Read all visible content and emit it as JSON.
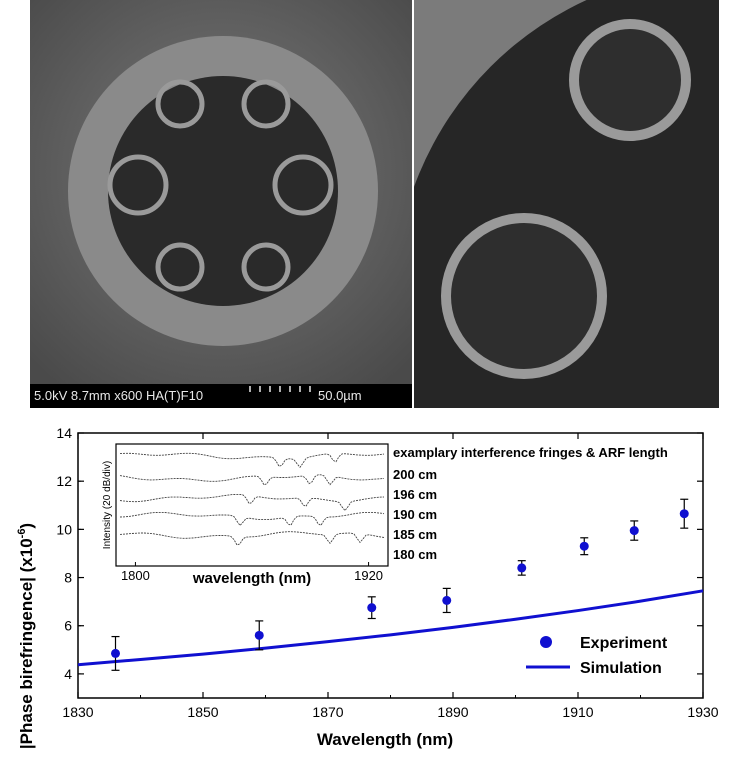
{
  "sem": {
    "left": {
      "info": "5.0kV 8.7mm x600 HA(T)F10",
      "scale_label": "50.0µm"
    }
  },
  "chart_data": {
    "type": "scatter",
    "xlabel": "Wavelength (nm)",
    "ylabel": "|Phase birefringence| (x10",
    "ylabel_exponent": "-6",
    "ylabel_suffix": ")",
    "xlim": [
      1830,
      1930
    ],
    "ylim": [
      3,
      14
    ],
    "xticks": [
      1830,
      1850,
      1870,
      1890,
      1910,
      1930
    ],
    "yticks": [
      4,
      6,
      8,
      10,
      12,
      14
    ],
    "legend_position": "bottom-right",
    "series": [
      {
        "name": "Experiment",
        "color": "#1010d0",
        "marker": "circle",
        "x": [
          1836,
          1859,
          1877,
          1889,
          1901,
          1911,
          1919,
          1927
        ],
        "y": [
          4.85,
          5.6,
          6.75,
          7.05,
          8.4,
          9.3,
          9.95,
          10.65
        ],
        "err_lower": [
          0.7,
          0.6,
          0.45,
          0.5,
          0.3,
          0.35,
          0.4,
          0.6
        ],
        "err_upper": [
          0.7,
          0.6,
          0.45,
          0.5,
          0.3,
          0.35,
          0.4,
          0.6
        ]
      },
      {
        "name": "Simulation",
        "color": "#1010d0",
        "marker": "line",
        "x": [
          1830,
          1840,
          1850,
          1860,
          1870,
          1880,
          1890,
          1900,
          1910,
          1920,
          1930
        ],
        "y": [
          4.38,
          4.6,
          4.82,
          5.07,
          5.34,
          5.62,
          5.93,
          6.27,
          6.63,
          7.02,
          7.45
        ]
      }
    ],
    "inset": {
      "xlabel": "wavelength (nm)",
      "ylabel": "Intensity (20 dB/div)",
      "xlim": [
        1790,
        1930
      ],
      "xticks": [
        1800,
        1920
      ],
      "title": "examplary interference fringes & ARF length",
      "traces": [
        {
          "label": "200 cm",
          "offset": 4
        },
        {
          "label": "196 cm",
          "offset": 3
        },
        {
          "label": "190 cm",
          "offset": 2
        },
        {
          "label": "185 cm",
          "offset": 1
        },
        {
          "label": "180 cm",
          "offset": 0
        }
      ]
    }
  }
}
